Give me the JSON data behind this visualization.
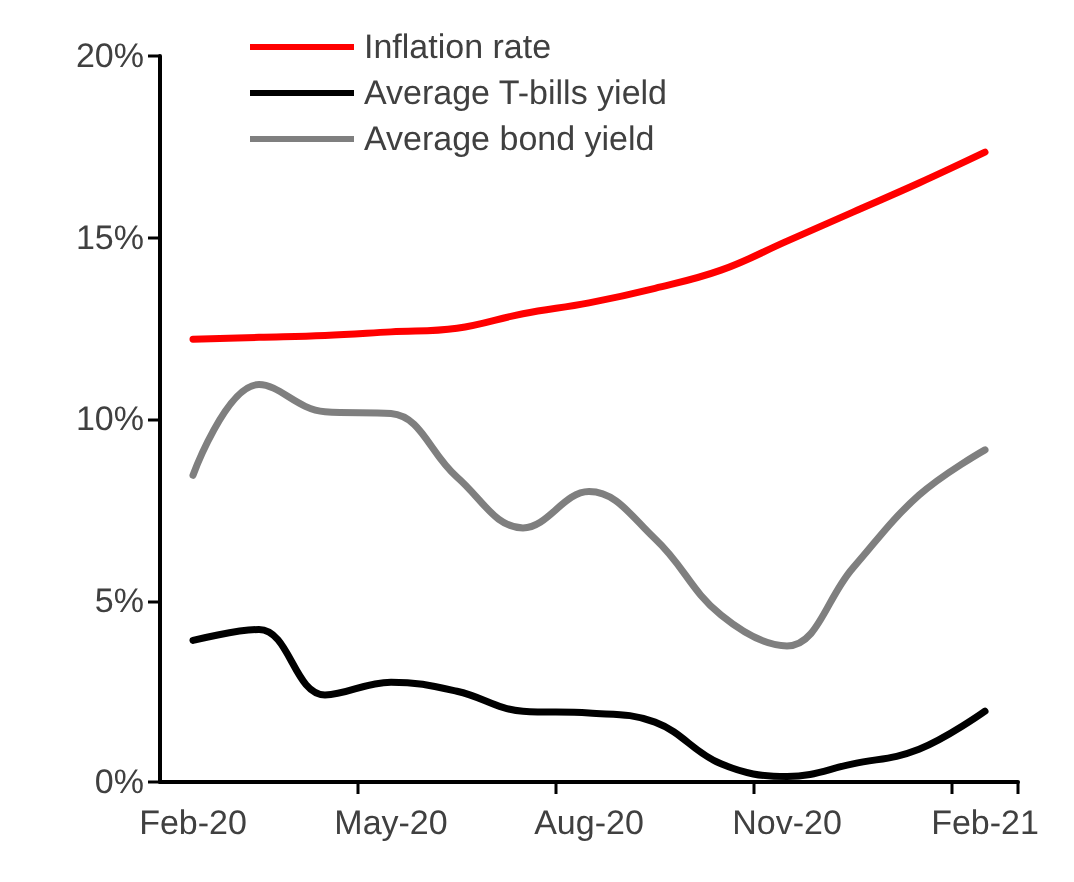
{
  "chart_data": {
    "type": "line",
    "categories": [
      "Feb-20",
      null,
      null,
      "May-20",
      null,
      null,
      "Aug-20",
      null,
      null,
      "Nov-20",
      null,
      null,
      "Feb-21"
    ],
    "series": [
      {
        "name": "Inflation rate",
        "color": "#ff0000",
        "values": [
          12.2,
          12.25,
          12.3,
          12.4,
          12.5,
          12.9,
          13.2,
          13.6,
          14.1,
          14.9,
          15.7,
          16.5,
          17.35
        ]
      },
      {
        "name": "Average T-bills yield",
        "color": "#000000",
        "values": [
          3.9,
          4.2,
          2.4,
          2.75,
          2.5,
          1.95,
          1.9,
          1.65,
          0.5,
          0.15,
          0.5,
          0.9,
          1.95
        ]
      },
      {
        "name": "Average bond yield",
        "color": "#7f7f7f",
        "values": [
          8.45,
          10.95,
          10.2,
          10.15,
          8.4,
          7.0,
          8.0,
          6.7,
          4.6,
          3.75,
          5.9,
          7.9,
          9.15
        ]
      }
    ],
    "ylim": [
      0,
      20
    ],
    "yticks": [
      {
        "value": 0,
        "label": "0%"
      },
      {
        "value": 5,
        "label": "5%"
      },
      {
        "value": 10,
        "label": "10%"
      },
      {
        "value": 15,
        "label": "15%"
      },
      {
        "value": 20,
        "label": "20%"
      }
    ],
    "grid": false,
    "legend": "top left",
    "marker": "none",
    "line_style": "solid"
  }
}
